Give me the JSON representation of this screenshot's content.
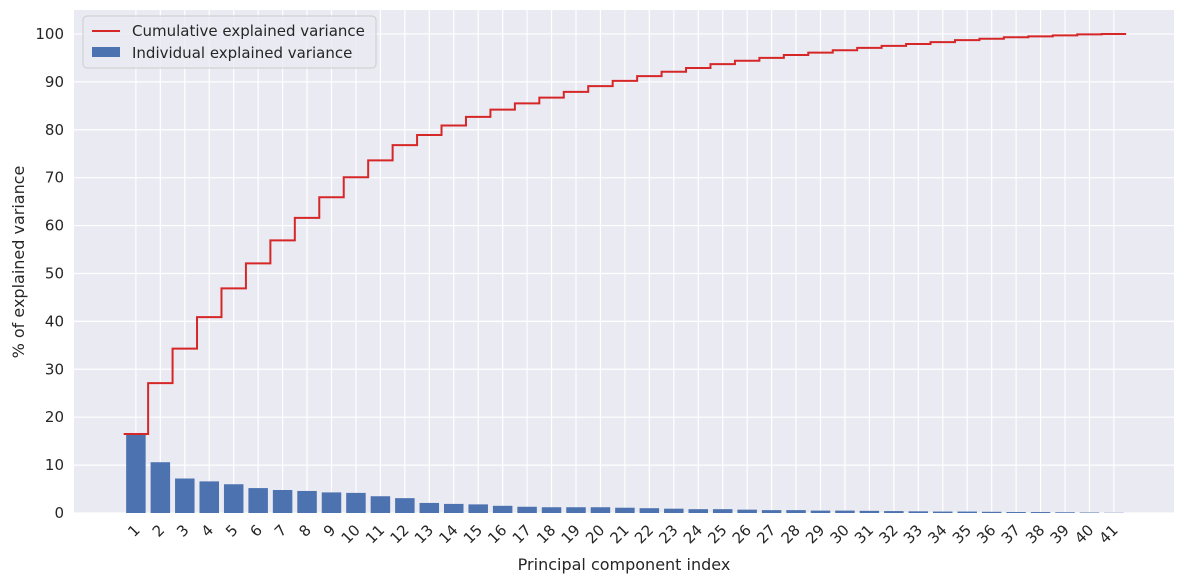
{
  "chart_data": {
    "type": "bar",
    "title": "",
    "xlabel": "Principal component index",
    "ylabel": "% of explained variance",
    "ylim": [
      0,
      105
    ],
    "yticks": [
      0,
      10,
      20,
      30,
      40,
      50,
      60,
      70,
      80,
      90,
      100
    ],
    "grid": true,
    "legend_position": "top-left",
    "categories": [
      "1",
      "2",
      "3",
      "4",
      "5",
      "6",
      "7",
      "8",
      "9",
      "10",
      "11",
      "12",
      "13",
      "14",
      "15",
      "16",
      "17",
      "18",
      "19",
      "20",
      "21",
      "22",
      "23",
      "24",
      "25",
      "26",
      "27",
      "28",
      "29",
      "30",
      "31",
      "32",
      "33",
      "34",
      "35",
      "36",
      "37",
      "38",
      "39",
      "40",
      "41"
    ],
    "series": [
      {
        "name": "Individual explained variance",
        "type": "bar",
        "color": "#4c72b0",
        "values": [
          16.5,
          10.6,
          7.2,
          6.6,
          6.0,
          5.2,
          4.8,
          4.6,
          4.3,
          4.2,
          3.5,
          3.1,
          2.1,
          1.9,
          1.8,
          1.5,
          1.3,
          1.2,
          1.2,
          1.2,
          1.1,
          1.0,
          0.9,
          0.8,
          0.8,
          0.7,
          0.6,
          0.6,
          0.5,
          0.5,
          0.45,
          0.4,
          0.35,
          0.3,
          0.3,
          0.25,
          0.2,
          0.2,
          0.15,
          0.1,
          0.05
        ]
      },
      {
        "name": "Cumulative explained variance",
        "type": "step",
        "color": "#d62728",
        "values": [
          16.5,
          27.1,
          34.3,
          40.9,
          46.9,
          52.1,
          56.9,
          61.6,
          65.9,
          70.1,
          73.6,
          76.8,
          78.9,
          80.9,
          82.7,
          84.2,
          85.5,
          86.7,
          87.9,
          89.1,
          90.2,
          91.2,
          92.1,
          92.9,
          93.7,
          94.4,
          95.0,
          95.6,
          96.1,
          96.6,
          97.1,
          97.5,
          97.9,
          98.3,
          98.7,
          99.0,
          99.3,
          99.5,
          99.7,
          99.9,
          100.0
        ]
      }
    ],
    "colors": {
      "plot_background": "#eaeaf2",
      "grid": "#ffffff",
      "text": "#262626"
    }
  }
}
